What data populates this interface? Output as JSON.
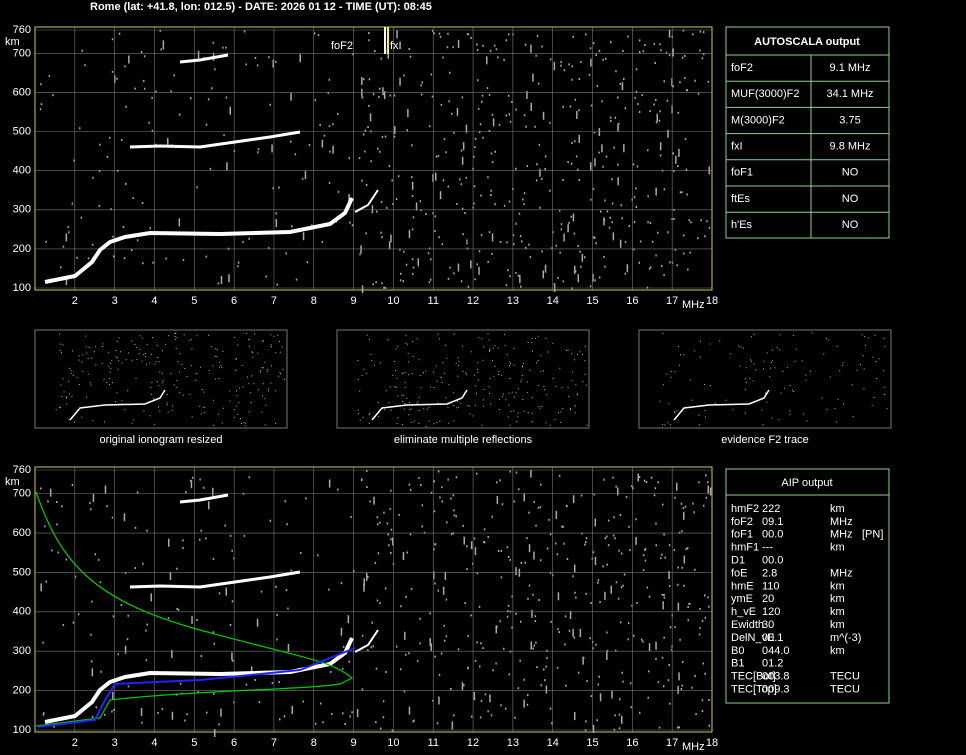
{
  "header": {
    "title": "Rome (lat: +41.8, lon: 012.5) - DATE: 2026 01 12 - TIME (UT): 08:45"
  },
  "top_plot": {
    "y_unit": "km",
    "x_unit": "MHz",
    "yticks": [
      760,
      700,
      600,
      500,
      400,
      300,
      200,
      100
    ],
    "xticks": [
      2,
      3,
      4,
      5,
      6,
      7,
      8,
      9,
      10,
      11,
      12,
      13,
      14,
      15,
      16,
      17,
      18
    ],
    "markers": {
      "fof2": "foF2",
      "fxi": "fxI"
    }
  },
  "autoscala": {
    "title": "AUTOSCALA output",
    "rows": [
      [
        "foF2",
        "9.1 MHz"
      ],
      [
        "MUF(3000)F2",
        "34.1 MHz"
      ],
      [
        "M(3000)F2",
        "3.75"
      ],
      [
        "fxI",
        "9.8 MHz"
      ],
      [
        "foF1",
        "NO"
      ],
      [
        "ftEs",
        "NO"
      ],
      [
        "h'Es",
        "NO"
      ]
    ]
  },
  "thumbnails": [
    "original ionogram resized",
    "eliminate multiple reflections",
    "evidence F2 trace"
  ],
  "bottom_plot": {
    "y_unit": "km",
    "x_unit": "MHz",
    "yticks": [
      760,
      700,
      600,
      500,
      400,
      300,
      200,
      100
    ],
    "xticks": [
      2,
      3,
      4,
      5,
      6,
      7,
      8,
      9,
      10,
      11,
      12,
      13,
      14,
      15,
      16,
      17,
      18
    ]
  },
  "aip": {
    "title": "AIP output",
    "rows": [
      [
        "hmF2",
        "222",
        "km"
      ],
      [
        "foF2",
        "09.1",
        "MHz"
      ],
      [
        "foF1",
        "00.0",
        "MHz",
        "[PN]"
      ],
      [
        "hmF1",
        "---",
        "km"
      ],
      [
        "D1",
        "00.0"
      ],
      [
        "foE",
        "2.8",
        "MHz"
      ],
      [
        "hmE",
        "110",
        "km"
      ],
      [
        "ymE",
        "20",
        "km"
      ],
      [
        "h_vE",
        "120",
        "km"
      ],
      [
        "Ewidth",
        "30",
        "km"
      ],
      [
        "DelN_vE",
        "00.1",
        "m^(-3)"
      ],
      [
        "B0",
        "044.0",
        "km"
      ],
      [
        "B1",
        "01.2"
      ],
      [
        "TEC[Bot]",
        "003.8",
        "TECU"
      ],
      [
        "TEC[Top]",
        "009.3",
        "TECU"
      ]
    ]
  }
}
